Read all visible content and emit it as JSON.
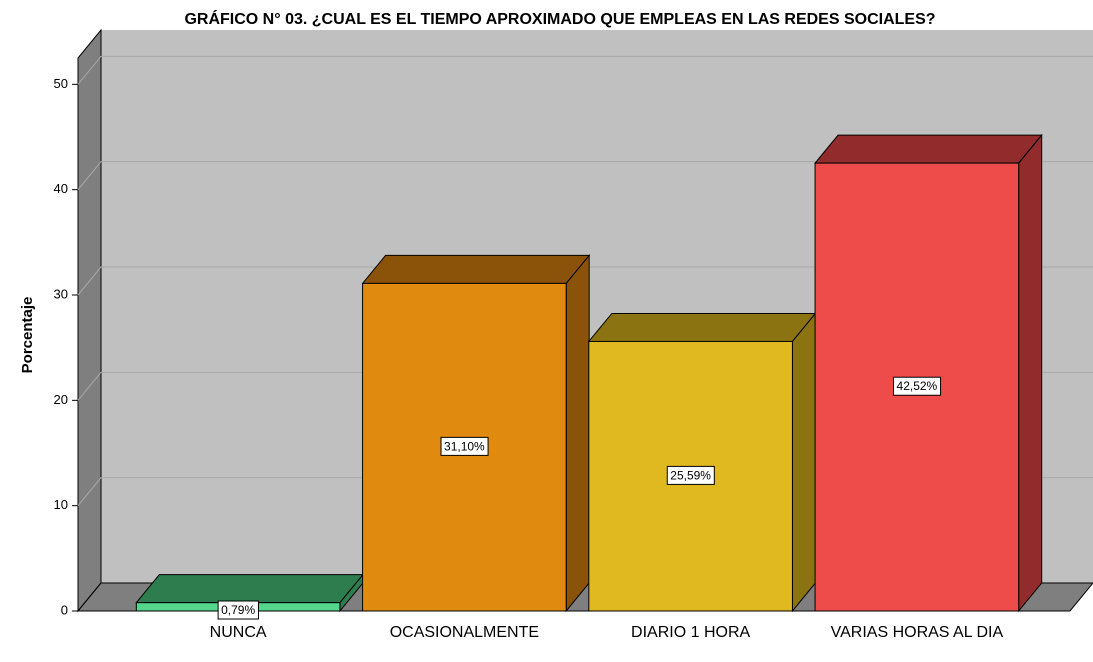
{
  "chart_data": {
    "type": "bar3d",
    "title": "GRÁFICO N° 03. ¿CUAL ES EL TIEMPO APROXIMADO QUE EMPLEAS EN LAS REDES SOCIALES?",
    "y_label": "Porcentaje",
    "categories": [
      "NUNCA",
      "OCASIONALMENTE",
      "DIARIO 1 HORA",
      "VARIAS HORAS AL DIA"
    ],
    "values": [
      0.79,
      31.1,
      25.59,
      42.52
    ],
    "value_labels": [
      "0,79%",
      "31,10%",
      "25,59%",
      "42,52%"
    ],
    "colors": [
      "#55d68d",
      "#e08a10",
      "#e0b820",
      "#ee4b4b"
    ],
    "side_colors": [
      "#2e7d4f",
      "#8b520a",
      "#8b7312",
      "#922c2c"
    ],
    "ylim": [
      0,
      52.5
    ],
    "yticks": [
      0,
      10,
      20,
      30,
      40,
      50
    ],
    "grid": true
  }
}
